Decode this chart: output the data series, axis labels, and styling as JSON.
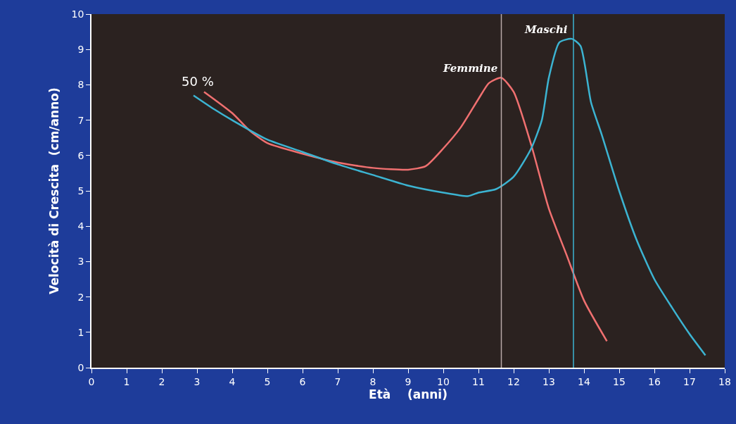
{
  "chart_data": {
    "type": "line",
    "xlabel": "Età    (anni)",
    "ylabel": "Velocità di Crescita  (cm/anno)",
    "xlim": [
      0,
      18
    ],
    "xticks": [
      0,
      1,
      2,
      3,
      4,
      5,
      6,
      7,
      8,
      9,
      10,
      11,
      12,
      13,
      14,
      15,
      16,
      17,
      18
    ],
    "ylim": [
      0,
      10
    ],
    "yticks": [
      0,
      1,
      2,
      3,
      4,
      5,
      6,
      7,
      8,
      9,
      10
    ],
    "legend": false,
    "marker": "none",
    "line_style": "solid",
    "series": [
      {
        "name": "Femmine",
        "color": "#f07070",
        "x": [
          3.2,
          4,
          4.5,
          5,
          6,
          7,
          8,
          9,
          9.5,
          10,
          10.5,
          11,
          11.3,
          11.65,
          12,
          12.5,
          13,
          13.5,
          14,
          14.65
        ],
        "values": [
          7.8,
          7.2,
          6.7,
          6.35,
          6.05,
          5.8,
          5.65,
          5.6,
          5.7,
          6.2,
          6.8,
          7.6,
          8.05,
          8.2,
          7.8,
          6.3,
          4.5,
          3.2,
          1.9,
          0.75
        ]
      },
      {
        "name": "Maschi",
        "color": "#3cb4d2",
        "x": [
          2.9,
          3.5,
          4,
          5,
          6,
          7,
          8,
          9,
          10,
          10.7,
          11,
          11.5,
          12,
          12.5,
          12.8,
          13,
          13.3,
          13.65,
          13.9,
          14.2,
          14.5,
          15,
          15.5,
          16,
          16.5,
          17,
          17.45
        ],
        "values": [
          7.7,
          7.3,
          7.0,
          6.45,
          6.1,
          5.75,
          5.45,
          5.15,
          4.95,
          4.85,
          4.95,
          5.05,
          5.4,
          6.2,
          7.0,
          8.2,
          9.2,
          9.3,
          9.1,
          7.5,
          6.6,
          5.0,
          3.6,
          2.5,
          1.7,
          0.95,
          0.35
        ]
      }
    ],
    "ref_lines": [
      {
        "axis": "x",
        "value": 11.65,
        "color": "#b8a8a8"
      },
      {
        "axis": "x",
        "value": 13.7,
        "color": "#3cb4d2"
      }
    ],
    "annotations": [
      "50 %"
    ]
  }
}
